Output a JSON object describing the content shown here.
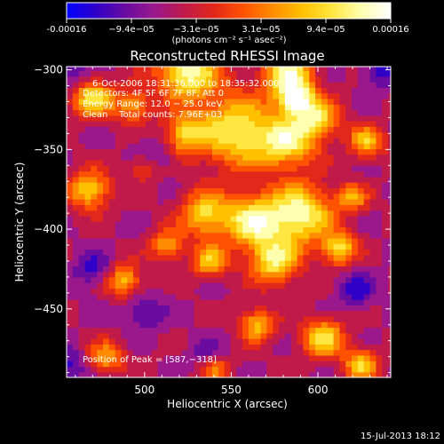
{
  "colorbar": {
    "tick_labels": [
      "-0.00016",
      "−9.4e−05",
      "−3.1e−05",
      "3.1e−05",
      "9.4e−05",
      "0.00016"
    ],
    "units": "(photons cm⁻² s⁻¹ asec⁻²)",
    "range": [
      -0.00016,
      0.00016
    ],
    "colors": [
      "#0000ff",
      "#3000c8",
      "#6a0ca0",
      "#9a188c",
      "#c01a4a",
      "#e2281a",
      "#ff5200",
      "#ff8c00",
      "#ffc000",
      "#ffe640",
      "#ffffb0",
      "#ffffff"
    ]
  },
  "chart_data": {
    "type": "heatmap",
    "title": "Reconstructed RHESSI Image",
    "xlabel": "Heliocentric X (arcsec)",
    "ylabel": "Heliocentric Y (arcsec)",
    "xlim": [
      455,
      642
    ],
    "ylim": [
      -493,
      -298
    ],
    "x_ticks": [
      500,
      550,
      600
    ],
    "y_ticks": [
      -300,
      -350,
      -400,
      -450
    ],
    "x_tick_labels": [
      "500",
      "550",
      "600"
    ],
    "y_tick_labels": [
      "−300",
      "−350",
      "−400",
      "−450"
    ],
    "annotations": [
      "6-Oct-2006 18:31:36.000 to 18:35:32.000",
      "Detectors: 4F 5F 6F 7F 8F, Att 0",
      "Energy Range: 12.0 − 25.0 keV",
      "Clean    Total counts: 7.96E+03"
    ],
    "peak_label": "Position of Peak = [587,−318]",
    "peak": [
      587,
      -318
    ],
    "grid": false,
    "timestamp": "15-Jul-2013 18:12"
  }
}
